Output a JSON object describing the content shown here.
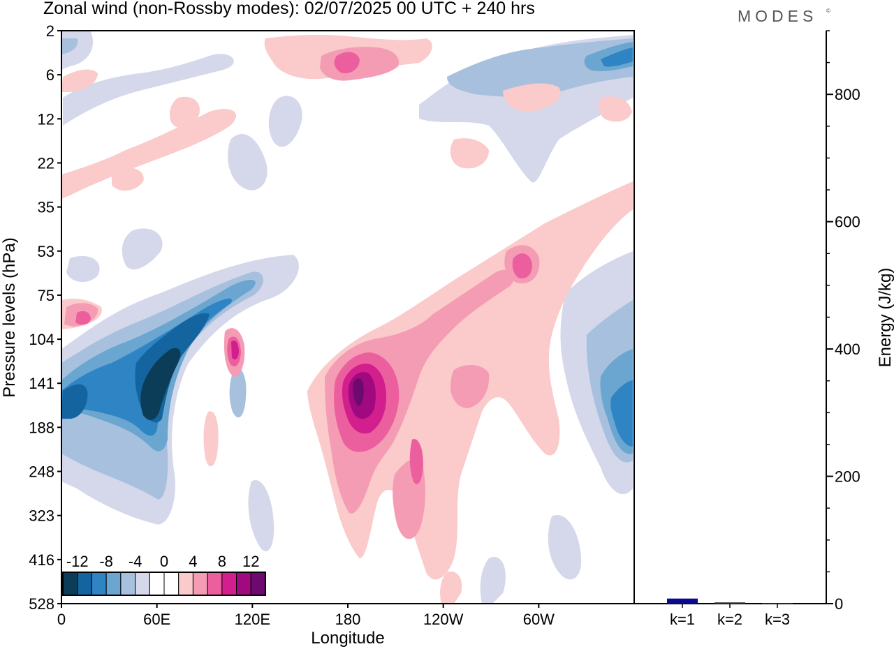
{
  "title": "Zonal wind (non-Rossby modes):  02/07/2025  00 UTC  + 240 hrs",
  "brand": "MODES",
  "brand_mark": "©",
  "chart_data": [
    {
      "type": "heatmap",
      "subtype": "filled-contour",
      "variable": "Zonal wind (non-Rossby modes)",
      "xlabel": "Longitude",
      "ylabel": "Pressure levels (hPa)",
      "x_tick_labels": [
        "0",
        "60E",
        "120E",
        "180",
        "120W",
        "60W"
      ],
      "x_tick_values_deg": [
        0,
        60,
        120,
        180,
        240,
        300
      ],
      "xlim": [
        0,
        360
      ],
      "y_tick_labels": [
        "2",
        "6",
        "12",
        "22",
        "35",
        "53",
        "75",
        "104",
        "141",
        "188",
        "248",
        "323",
        "416",
        "528"
      ],
      "y_axis_order": "top-to-bottom",
      "colorbar": {
        "labels": [
          "-12",
          "-8",
          "-4",
          "0",
          "4",
          "8",
          "12"
        ],
        "levels": [
          -14,
          -12,
          -10,
          -8,
          -6,
          -4,
          -2,
          0,
          2,
          4,
          6,
          8,
          10,
          12,
          14
        ],
        "colors": [
          "#0c3d58",
          "#1464a0",
          "#2f84c4",
          "#6aa6d0",
          "#a7c0dd",
          "#d4d8ea",
          "#ffffff",
          "#ffffff",
          "#fbcaca",
          "#f59cb5",
          "#ec5f9e",
          "#d31e8e",
          "#a0097f",
          "#6d0a70"
        ]
      },
      "features": [
        {
          "lon": 50,
          "level_hPa": 141,
          "value": -14,
          "note": "strong easterly core"
        },
        {
          "lon": 5,
          "level_hPa": 160,
          "value": -10
        },
        {
          "lon": 350,
          "level_hPa": 188,
          "value": -10
        },
        {
          "lon": 350,
          "level_hPa": 5,
          "value": -8
        },
        {
          "lon": 110,
          "level_hPa": 115,
          "value": 10
        },
        {
          "lon": 183,
          "level_hPa": 141,
          "value": 14,
          "note": "strong westerly core"
        },
        {
          "lon": 225,
          "level_hPa": 220,
          "value": 6
        },
        {
          "lon": 290,
          "level_hPa": 60,
          "value": 8
        },
        {
          "lon": 170,
          "level_hPa": 5,
          "value": 8
        },
        {
          "lon": 8,
          "level_hPa": 90,
          "value": 8
        }
      ]
    },
    {
      "type": "bar",
      "ylabel": "Energy (J/kg)",
      "ylim": [
        0,
        900
      ],
      "y_tick_labels": [
        "0",
        "200",
        "400",
        "600",
        "800"
      ],
      "y_tick_values": [
        0,
        200,
        400,
        600,
        800
      ],
      "y_minor_step": 50,
      "categories": [
        "k=1",
        "k=2",
        "k=3"
      ],
      "values": [
        8,
        2,
        1
      ],
      "bar_colors": [
        "#0a0a90",
        "#3a3a3a",
        "#3a3a3a"
      ]
    }
  ]
}
